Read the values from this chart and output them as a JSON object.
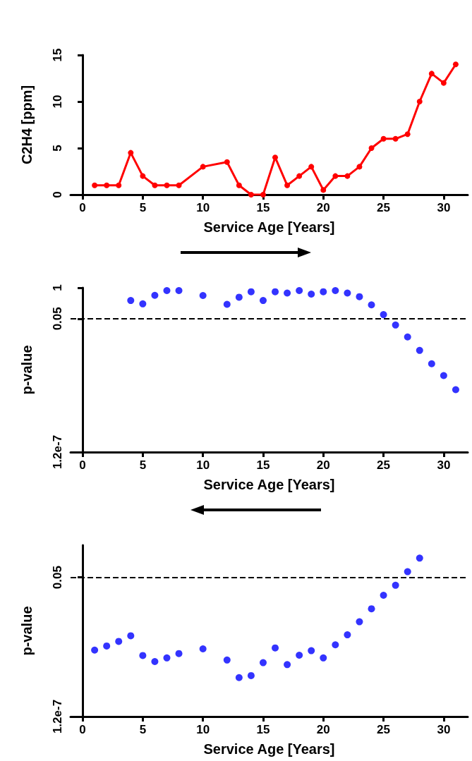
{
  "chart_data": [
    {
      "type": "line",
      "xlabel": "Service Age [Years]",
      "ylabel": "C2H4 [ppm]",
      "x": [
        1,
        2,
        3,
        4,
        5,
        6,
        7,
        8,
        10,
        12,
        13,
        14,
        15,
        16,
        17,
        18,
        19,
        20,
        21,
        22,
        23,
        24,
        25,
        26,
        27,
        28,
        29,
        30,
        31
      ],
      "values": [
        1,
        1,
        1,
        4.5,
        2,
        1,
        1,
        1,
        3,
        3.5,
        1,
        0,
        0,
        4,
        1,
        2,
        3,
        0.5,
        2,
        2,
        3,
        5,
        6,
        6,
        6.5,
        10,
        13,
        12,
        14
      ],
      "color": "#ff0000",
      "marker": "circle",
      "line_style": "solid",
      "xlim": [
        -1,
        32
      ],
      "xticks": [
        0,
        5,
        10,
        15,
        20,
        25,
        30
      ],
      "ylim": [
        0,
        15
      ],
      "yticks": [
        0,
        5,
        10,
        15
      ],
      "grid": false
    },
    {
      "type": "scatter",
      "xlabel": "Service Age [Years]",
      "ylabel": "p-value",
      "log": true,
      "x": [
        4,
        5,
        6,
        7,
        8,
        10,
        12,
        13,
        14,
        15,
        16,
        17,
        18,
        19,
        20,
        21,
        22,
        23,
        24,
        25,
        26,
        27,
        28,
        29,
        30,
        31
      ],
      "values": [
        0.29,
        0.21,
        0.48,
        0.76,
        0.76,
        0.47,
        0.2,
        0.4,
        0.68,
        0.29,
        0.68,
        0.6,
        0.76,
        0.54,
        0.68,
        0.76,
        0.6,
        0.42,
        0.19,
        0.074,
        0.027,
        0.0085,
        0.0023,
        0.00063,
        0.0002,
        5.1e-05
      ],
      "color": "#0000ff",
      "marker": "circle",
      "xlim": [
        -1,
        32
      ],
      "xticks": [
        0,
        5,
        10,
        15,
        20,
        25,
        30
      ],
      "ylim": [
        1.2e-07,
        1
      ],
      "yticks": [
        {
          "value": 1.2e-07,
          "label": "1.2e-7"
        },
        0.05,
        1
      ],
      "grid": false,
      "ref_lines": [
        {
          "axis": "y",
          "value": 0.05,
          "line_style": "dashed",
          "color": "#000000"
        }
      ]
    },
    {
      "type": "scatter",
      "xlabel": "Service Age [Years]",
      "ylabel": "p-value",
      "log": true,
      "x": [
        1,
        2,
        3,
        4,
        5,
        6,
        7,
        8,
        10,
        12,
        13,
        14,
        15,
        16,
        17,
        18,
        19,
        20,
        21,
        22,
        23,
        24,
        25,
        26,
        27,
        28
      ],
      "values": [
        5.8e-05,
        8.5e-05,
        0.00013,
        0.00022,
        3.5e-05,
        2e-05,
        2.8e-05,
        4.2e-05,
        6.5e-05,
        2.3e-05,
        4.5e-06,
        5.4e-06,
        1.8e-05,
        7.1e-05,
        1.5e-05,
        3.6e-05,
        5.5e-05,
        2.8e-05,
        9.5e-05,
        0.00024,
        0.00081,
        0.0027,
        0.0095,
        0.024,
        0.085,
        0.3
      ],
      "color": "#0000ff",
      "marker": "circle",
      "xlim": [
        -1,
        32
      ],
      "xticks": [
        0,
        5,
        10,
        15,
        20,
        25,
        30
      ],
      "ylim": [
        1.2e-07,
        1
      ],
      "yticks": [
        {
          "value": 1.2e-07,
          "label": "1.2e-7"
        },
        0.05
      ],
      "grid": false,
      "ref_lines": [
        {
          "axis": "y",
          "value": 0.05,
          "line_style": "dashed",
          "color": "#000000"
        }
      ]
    }
  ]
}
